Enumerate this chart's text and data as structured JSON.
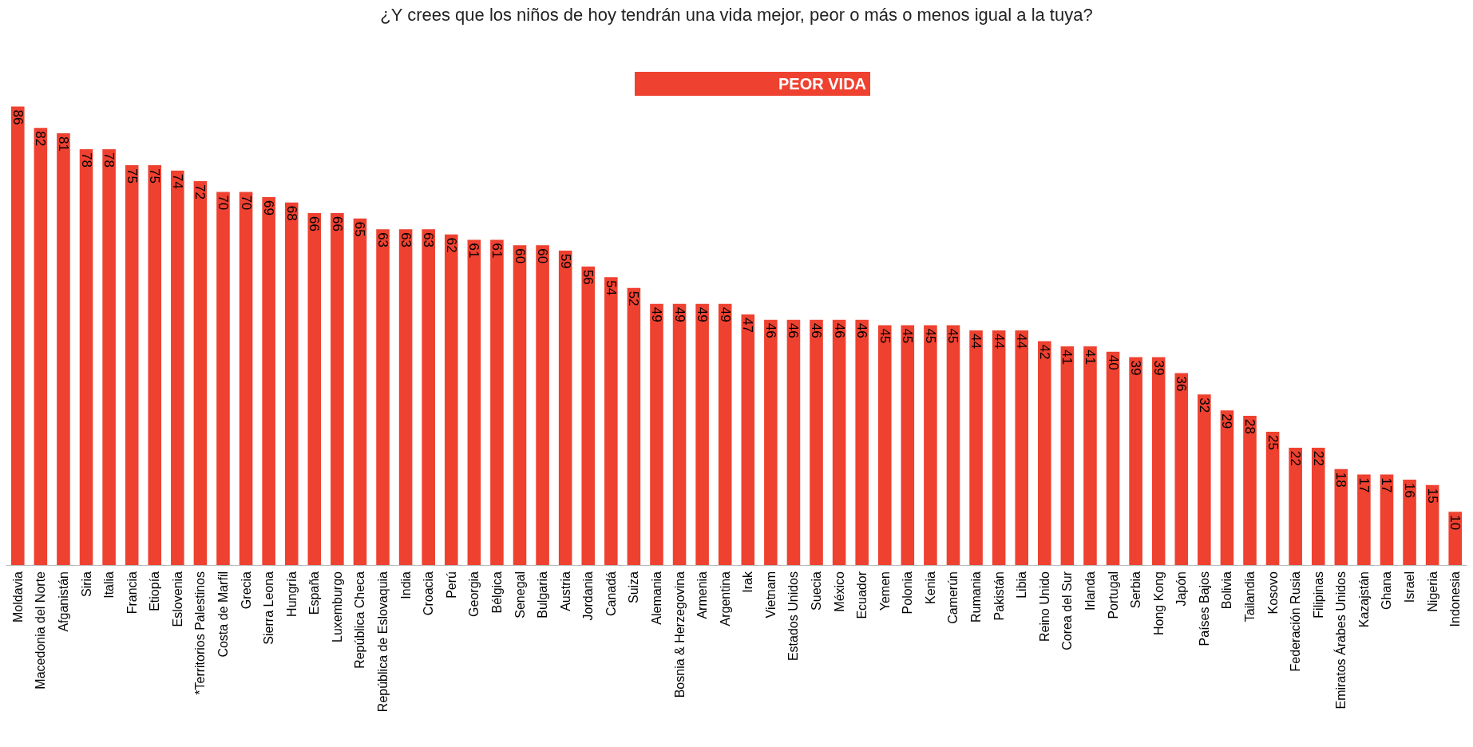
{
  "chart_data": {
    "type": "bar",
    "title": "¿Y crees que los niños de hoy tendrán una vida mejor, peor o más o menos igual a la tuya?",
    "categories": [
      "Moldavia",
      "Macedonia del Norte",
      "Afganistán",
      "Siria",
      "Italia",
      "Francia",
      "Etiopía",
      "Eslovenia",
      "*Territorios Palestinos",
      "Costa de Marfil",
      "Grecia",
      "Sierra Leona",
      "Hungría",
      "España",
      "Luxemburgo",
      "República Checa",
      "República de Eslovaquia",
      "India",
      "Croacia",
      "Perú",
      "Georgia",
      "Bélgica",
      "Senegal",
      "Bulgaria",
      "Austria",
      "Jordania",
      "Canadá",
      "Suiza",
      "Alemania",
      "Bosnia & Herzegovina",
      "Armenia",
      "Argentina",
      "Irak",
      "Vietnam",
      "Estados Unidos",
      "Suecia",
      "México",
      "Ecuador",
      "Yemen",
      "Polonia",
      "Kenia",
      "Camerún",
      "Rumania",
      "Pakistán",
      "Libia",
      "Reino Unido",
      "Corea del Sur",
      "Irlanda",
      "Portugal",
      "Serbia",
      "Hong Kong",
      "Japón",
      "Países Bajos",
      "Bolivia",
      "Tailandia",
      "Kosovo",
      "Federación Rusia",
      "Filipinas",
      "Emiratos Árabes Unidos",
      "Kazajstán",
      "Ghana",
      "Israel",
      "Nigeria",
      "Indonesia"
    ],
    "series": [
      {
        "name": "PEOR VIDA",
        "color": "#ef4130",
        "values": [
          86,
          82,
          81,
          78,
          78,
          75,
          75,
          74,
          72,
          70,
          70,
          69,
          68,
          66,
          66,
          65,
          63,
          63,
          63,
          62,
          61,
          61,
          60,
          60,
          59,
          56,
          54,
          52,
          49,
          49,
          49,
          49,
          47,
          46,
          46,
          46,
          46,
          46,
          45,
          45,
          45,
          45,
          44,
          44,
          44,
          42,
          41,
          41,
          40,
          39,
          39,
          36,
          32,
          29,
          28,
          25,
          22,
          22,
          18,
          17,
          17,
          16,
          15,
          10
        ]
      }
    ],
    "data_labels": true,
    "legend": "top",
    "grid": false
  }
}
